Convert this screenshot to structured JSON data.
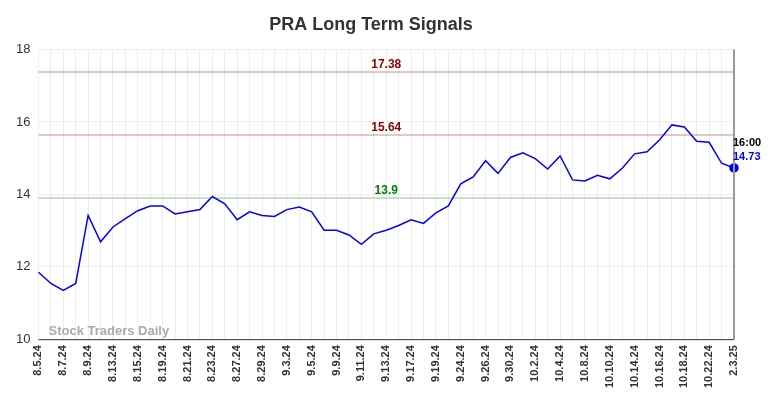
{
  "chart_data": {
    "type": "line",
    "title": "PRA Long Term Signals",
    "categories": [
      "8.5.24",
      null,
      "8.7.24",
      null,
      "8.9.24",
      null,
      "8.13.24",
      null,
      "8.15.24",
      null,
      "8.19.24",
      null,
      "8.21.24",
      null,
      "8.23.24",
      null,
      "8.27.24",
      null,
      "8.29.24",
      null,
      "9.3.24",
      null,
      "9.5.24",
      null,
      "9.9.24",
      null,
      "9.11.24",
      null,
      "9.13.24",
      null,
      "9.17.24",
      null,
      "9.19.24",
      null,
      "9.24.24",
      null,
      "9.26.24",
      null,
      "9.30.24",
      null,
      "10.2.24",
      null,
      "10.4.24",
      null,
      "10.8.24",
      null,
      "10.10.24",
      null,
      "10.14.24",
      null,
      "10.16.24",
      null,
      "10.18.24",
      null,
      "10.22.24",
      null,
      "2.3.25"
    ],
    "values": [
      11.85,
      11.54,
      11.35,
      11.54,
      13.42,
      12.69,
      13.1,
      13.33,
      13.55,
      13.68,
      13.68,
      13.46,
      13.52,
      13.58,
      13.94,
      13.74,
      13.3,
      13.52,
      13.42,
      13.39,
      13.58,
      13.65,
      13.52,
      13.01,
      13.01,
      12.88,
      12.62,
      12.91,
      13.01,
      13.14,
      13.3,
      13.2,
      13.49,
      13.68,
      14.29,
      14.48,
      14.93,
      14.58,
      15.02,
      15.15,
      14.99,
      14.7,
      15.06,
      14.4,
      14.37,
      14.53,
      14.43,
      14.72,
      15.12,
      15.18,
      15.5,
      15.92,
      15.86,
      15.47,
      15.44,
      14.86,
      14.73
    ],
    "color": "#0000ff",
    "ylim": [
      10,
      18
    ],
    "yticks": [
      10,
      12,
      14,
      16,
      18
    ],
    "grid": true,
    "annotations": [
      {
        "value": 17.38,
        "label": "17.38",
        "color": "#8b0000"
      },
      {
        "value": 15.64,
        "label": "15.64",
        "color": "#8b0000"
      },
      {
        "value": 13.9,
        "label": "13.9",
        "color": "#008000"
      }
    ],
    "last_point": {
      "time": "16:00",
      "value": 14.73
    },
    "watermark": "Stock Traders Daily"
  }
}
